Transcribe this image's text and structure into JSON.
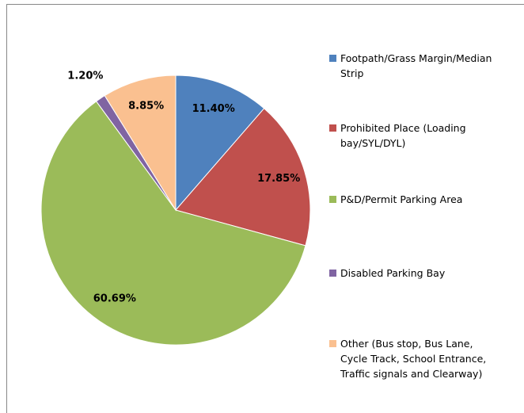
{
  "chart_data": {
    "type": "pie",
    "categories": [
      "Footpath/Grass Margin/Median Strip",
      "Prohibited Place (Loading bay/SYL/DYL)",
      "P&D/Permit Parking Area",
      "Disabled Parking Bay",
      "Other (Bus stop, Bus Lane, Cycle Track, School Entrance, Traffic signals and Clearway)"
    ],
    "values": [
      11.4,
      17.85,
      60.69,
      1.2,
      8.85
    ],
    "value_labels": [
      "11.40%",
      "17.85%",
      "60.69%",
      "1.20%",
      "8.85%"
    ],
    "colors": [
      "#4f81bd",
      "#c0504d",
      "#9bbb59",
      "#8064a2",
      "#fac090"
    ],
    "legend": "right"
  }
}
